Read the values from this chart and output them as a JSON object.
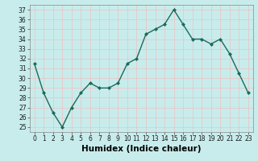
{
  "x": [
    0,
    1,
    2,
    3,
    4,
    5,
    6,
    7,
    8,
    9,
    10,
    11,
    12,
    13,
    14,
    15,
    16,
    17,
    18,
    19,
    20,
    21,
    22,
    23
  ],
  "y": [
    31.5,
    28.5,
    26.5,
    25.0,
    27.0,
    28.5,
    29.5,
    29.0,
    29.0,
    29.5,
    31.5,
    32.0,
    34.5,
    35.0,
    35.5,
    37.0,
    35.5,
    34.0,
    34.0,
    33.5,
    34.0,
    32.5,
    30.5,
    28.5
  ],
  "line_color": "#1a6b5a",
  "marker": "D",
  "marker_size": 2.0,
  "bg_color": "#c8ecec",
  "grid_color": "#e8c8c8",
  "xlabel": "Humidex (Indice chaleur)",
  "xlim": [
    -0.5,
    23.5
  ],
  "ylim": [
    24.5,
    37.5
  ],
  "yticks": [
    25,
    26,
    27,
    28,
    29,
    30,
    31,
    32,
    33,
    34,
    35,
    36,
    37
  ],
  "xticks": [
    0,
    1,
    2,
    3,
    4,
    5,
    6,
    7,
    8,
    9,
    10,
    11,
    12,
    13,
    14,
    15,
    16,
    17,
    18,
    19,
    20,
    21,
    22,
    23
  ],
  "tick_label_fontsize": 5.5,
  "xlabel_fontsize": 7.5,
  "line_width": 1.0
}
